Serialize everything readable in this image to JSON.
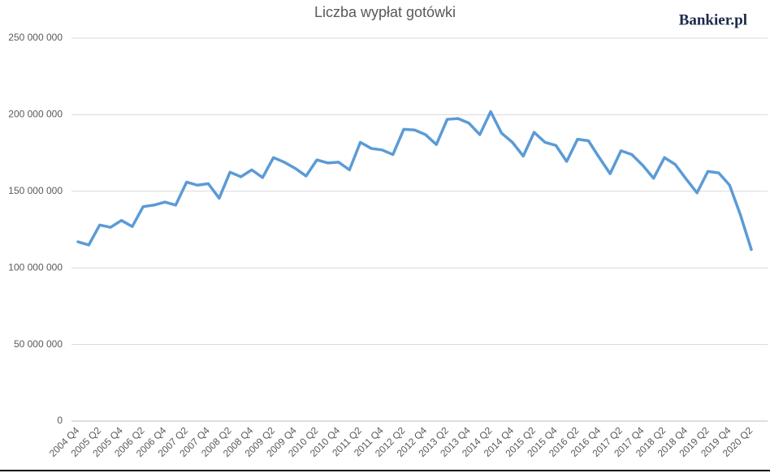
{
  "chart_data": {
    "type": "line",
    "title": "Liczba wypłat gotówki",
    "logo": "Bankier.pl",
    "categories": [
      "2004 Q4",
      null,
      "2005 Q2",
      null,
      "2005 Q4",
      null,
      "2006 Q2",
      null,
      "2006 Q4",
      null,
      "2007 Q2",
      null,
      "2007 Q4",
      null,
      "2008 Q2",
      null,
      "2008 Q4",
      null,
      "2009 Q2",
      null,
      "2009 Q4",
      null,
      "2010 Q2",
      null,
      "2010 Q4",
      null,
      "2011 Q2",
      null,
      "2011 Q4",
      null,
      "2012 Q2",
      null,
      "2012 Q4",
      null,
      "2013 Q2",
      null,
      "2013 Q4",
      null,
      "2014 Q2",
      null,
      "2014 Q4",
      null,
      "2015 Q2",
      null,
      "2015 Q4",
      null,
      "2016 Q2",
      null,
      "2016 Q4",
      null,
      "2017 Q2",
      null,
      "2017 Q4",
      null,
      "2018 Q2",
      null,
      "2018 Q4",
      null,
      "2019 Q2",
      null,
      "2019 Q4",
      null,
      "2020 Q2"
    ],
    "series": [
      {
        "color": "#5b9bd5",
        "values": [
          117000000,
          115000000,
          128000000,
          126500000,
          131000000,
          127000000,
          140000000,
          141000000,
          143000000,
          141000000,
          156000000,
          154000000,
          155000000,
          145500000,
          162500000,
          159500000,
          164000000,
          159000000,
          172000000,
          169000000,
          165000000,
          160000000,
          170500000,
          168500000,
          169000000,
          164000000,
          182000000,
          178000000,
          177000000,
          174000000,
          190500000,
          190000000,
          187000000,
          180500000,
          197000000,
          197500000,
          194500000,
          187000000,
          202000000,
          188000000,
          182000000,
          173000000,
          188500000,
          182000000,
          180000000,
          169500000,
          184000000,
          183000000,
          172000000,
          161500000,
          176500000,
          174000000,
          167000000,
          158500000,
          172000000,
          167500000,
          158000000,
          149000000,
          163000000,
          162000000,
          154000000,
          134500000,
          112000000
        ]
      }
    ],
    "ylim": [
      0,
      250000000
    ],
    "yticks": [
      0,
      {
        "value": 50000000,
        "label": "50 000 000"
      },
      {
        "value": 100000000,
        "label": "100 000 000"
      },
      {
        "value": 150000000,
        "label": "150 000 000"
      },
      {
        "value": 200000000,
        "label": "200 000 000"
      },
      {
        "value": 250000000,
        "label": "250 000 000"
      }
    ],
    "grid": true
  }
}
